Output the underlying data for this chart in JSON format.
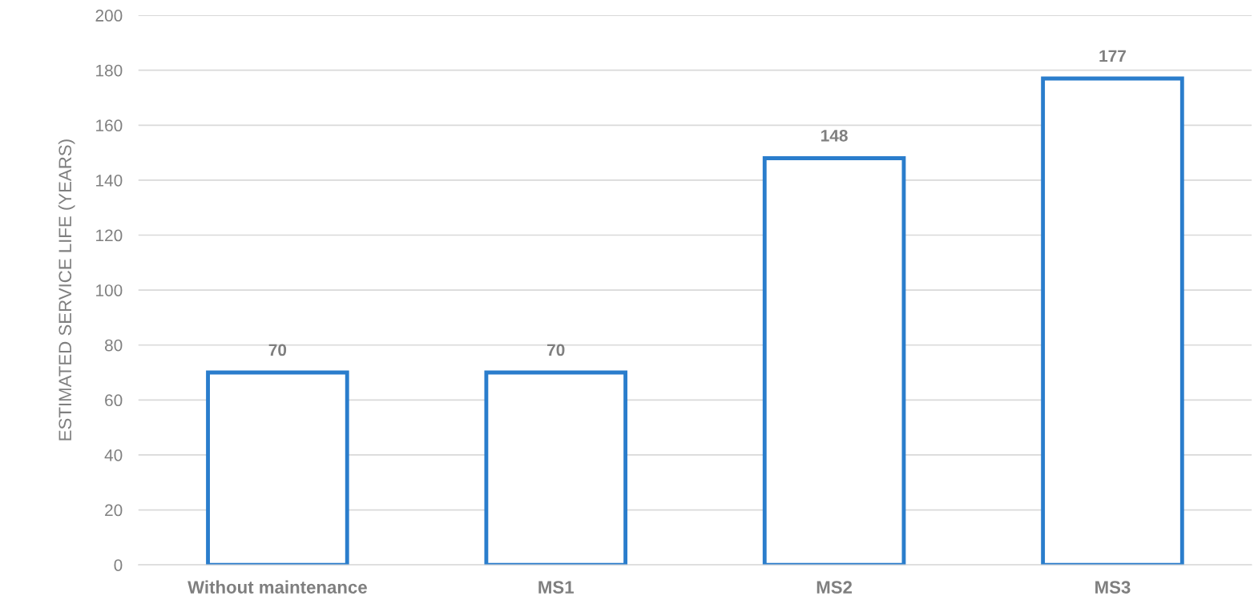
{
  "chart_data": {
    "type": "bar",
    "ylabel": "ESTIMATED SERVICE LIFE (YEARS)",
    "categories": [
      "Without maintenance",
      "MS1",
      "MS2",
      "MS3"
    ],
    "values": [
      70,
      70,
      148,
      177
    ],
    "color": "#2a7dcc",
    "ylim": [
      0,
      200
    ],
    "yticks": [
      0,
      20,
      40,
      60,
      80,
      100,
      120,
      140,
      160,
      180,
      200
    ],
    "grid": "y",
    "data_labels": true
  }
}
